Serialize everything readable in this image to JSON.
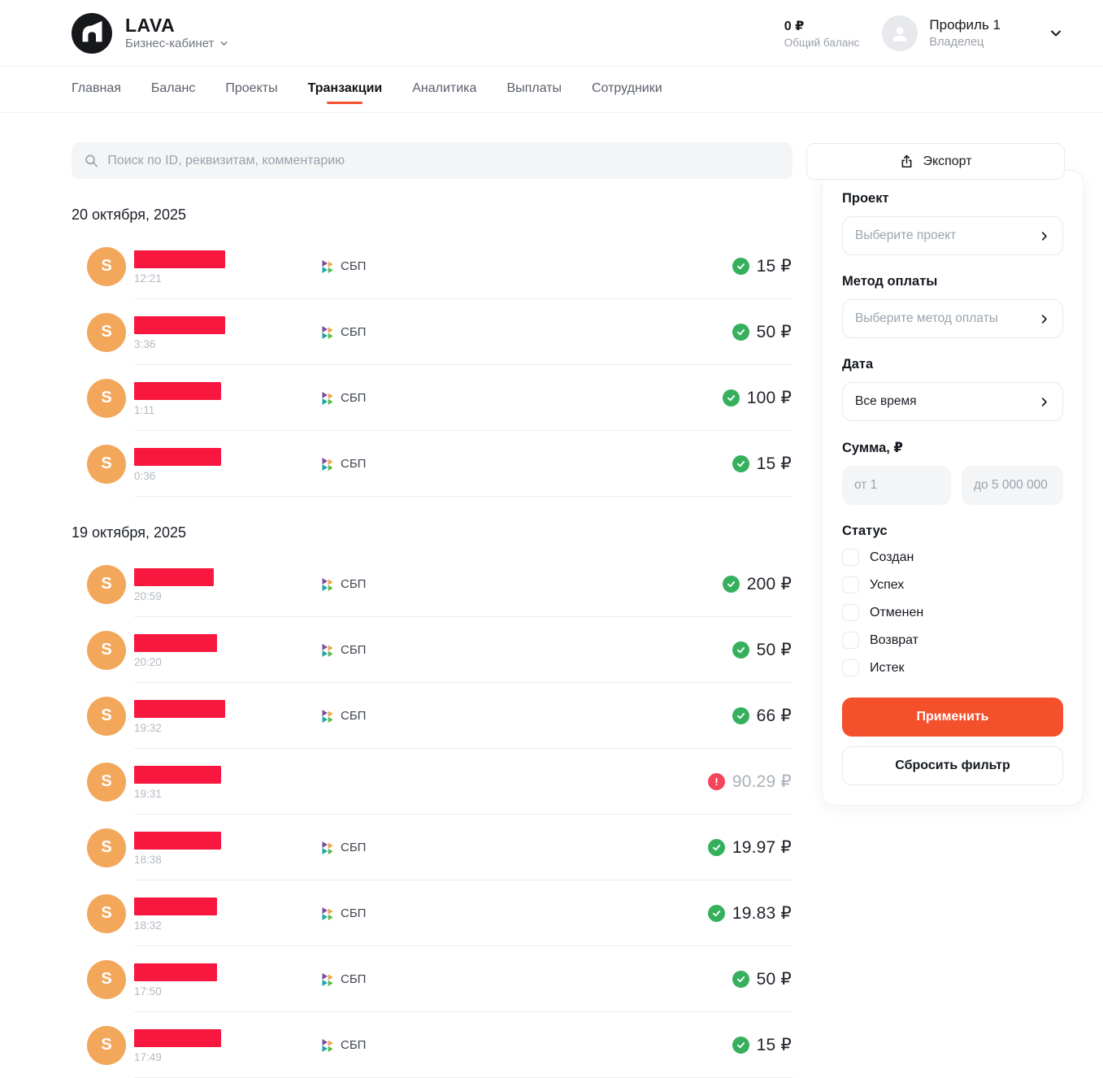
{
  "colors": {
    "accent": "#F4502C",
    "avatar_orange": "#F2A75B",
    "redact_red": "#F8173E",
    "success_green": "#36B05C",
    "fail_red": "#F4455A",
    "sbp": {
      "purple": "#7A4EA0",
      "orange": "#F0A23C",
      "teal": "#20A4A8",
      "green": "#55B944"
    }
  },
  "header": {
    "brand": "LAVA",
    "subtitle": "Бизнес-кабинет",
    "balance_value": "0 ₽",
    "balance_label": "Общий баланс",
    "profile_name": "Профиль 1",
    "profile_role": "Владелец"
  },
  "nav": {
    "tabs": [
      {
        "label": "Главная",
        "active": false
      },
      {
        "label": "Баланс",
        "active": false
      },
      {
        "label": "Проекты",
        "active": false
      },
      {
        "label": "Транзакции",
        "active": true
      },
      {
        "label": "Аналитика",
        "active": false
      },
      {
        "label": "Выплаты",
        "active": false
      },
      {
        "label": "Сотрудники",
        "active": false
      }
    ]
  },
  "toolbar": {
    "search_placeholder": "Поиск по ID, реквизитам, комментарию",
    "export_label": "Экспорт"
  },
  "transactions": {
    "avatar_letter": "S",
    "method_sbp": "СБП",
    "groups": [
      {
        "date": "20 октября, 2025",
        "rows": [
          {
            "time": "12:21",
            "method": "СБП",
            "amount": "15 ₽",
            "status": "success",
            "redact_w": 112
          },
          {
            "time": "3:36",
            "method": "СБП",
            "amount": "50 ₽",
            "status": "success",
            "redact_w": 112
          },
          {
            "time": "1:11",
            "method": "СБП",
            "amount": "100 ₽",
            "status": "success",
            "redact_w": 107
          },
          {
            "time": "0:36",
            "method": "СБП",
            "amount": "15 ₽",
            "status": "success",
            "redact_w": 107
          }
        ]
      },
      {
        "date": "19 октября, 2025",
        "rows": [
          {
            "time": "20:59",
            "method": "СБП",
            "amount": "200 ₽",
            "status": "success",
            "redact_w": 98
          },
          {
            "time": "20:20",
            "method": "СБП",
            "amount": "50 ₽",
            "status": "success",
            "redact_w": 102
          },
          {
            "time": "19:32",
            "method": "СБП",
            "amount": "66 ₽",
            "status": "success",
            "redact_w": 112
          },
          {
            "time": "19:31",
            "method": null,
            "amount": "90.29 ₽",
            "status": "fail",
            "redact_w": 107
          },
          {
            "time": "18:38",
            "method": "СБП",
            "amount": "19.97 ₽",
            "status": "success",
            "redact_w": 107
          },
          {
            "time": "18:32",
            "method": "СБП",
            "amount": "19.83 ₽",
            "status": "success",
            "redact_w": 102
          },
          {
            "time": "17:50",
            "method": "СБП",
            "amount": "50 ₽",
            "status": "success",
            "redact_w": 102
          },
          {
            "time": "17:49",
            "method": "СБП",
            "amount": "15 ₽",
            "status": "success",
            "redact_w": 107
          }
        ]
      }
    ]
  },
  "filters": {
    "project_label": "Проект",
    "project_placeholder": "Выберите проект",
    "method_label": "Метод оплаты",
    "method_placeholder": "Выберите метод оплаты",
    "date_label": "Дата",
    "date_value": "Все время",
    "amount_label": "Сумма, ₽",
    "amount_from_placeholder": "от 1",
    "amount_to_placeholder": "до 5 000 000",
    "status_label": "Статус",
    "statuses": [
      "Создан",
      "Успех",
      "Отменен",
      "Возврат",
      "Истек"
    ],
    "apply_label": "Применить",
    "reset_label": "Сбросить фильтр"
  }
}
